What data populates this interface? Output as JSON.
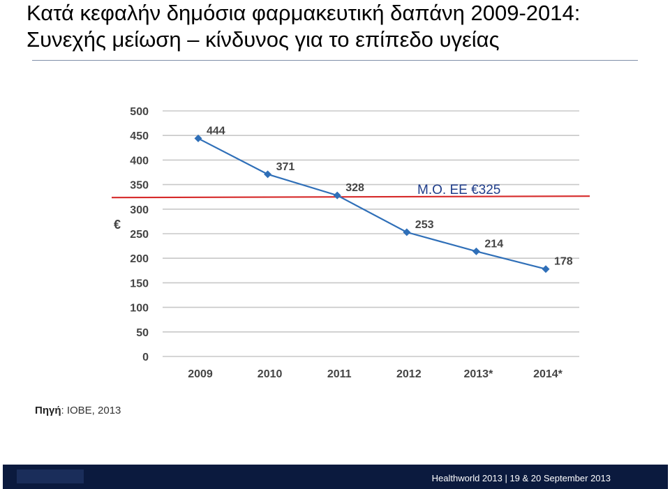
{
  "title": "Κατά κεφαλήν δημόσια φαρμακευτική δαπάνη 2009-2014: Συνεχής μείωση – κίνδυνος για το επίπεδο υγείας",
  "source": {
    "label": "Πηγή",
    "text": ": IOBE, 2013"
  },
  "footer": {
    "text": "Healthworld 2013 | 19 & 20 September 2013"
  },
  "colors": {
    "series": "#2f6fb8",
    "reference": "#d62a2a",
    "grid": "#c8c8c8",
    "tick_text": "#444444",
    "footer_bg": "#0b1a3e"
  },
  "chart_data": {
    "type": "line",
    "categories": [
      "2009",
      "2010",
      "2011",
      "2012",
      "2013*",
      "2014*"
    ],
    "series": [
      {
        "values": [
          444,
          371,
          328,
          253,
          214,
          178
        ]
      }
    ],
    "data_labels": [
      "444",
      "371",
      "328",
      "253",
      "214",
      "178"
    ],
    "ylabel": "€",
    "ylim": [
      0,
      500
    ],
    "yticks": [
      0,
      50,
      100,
      150,
      200,
      250,
      300,
      350,
      400,
      450,
      500
    ],
    "grid": true,
    "reference_line": {
      "value": 325,
      "label": "Μ.Ο. ΕΕ €325"
    }
  }
}
